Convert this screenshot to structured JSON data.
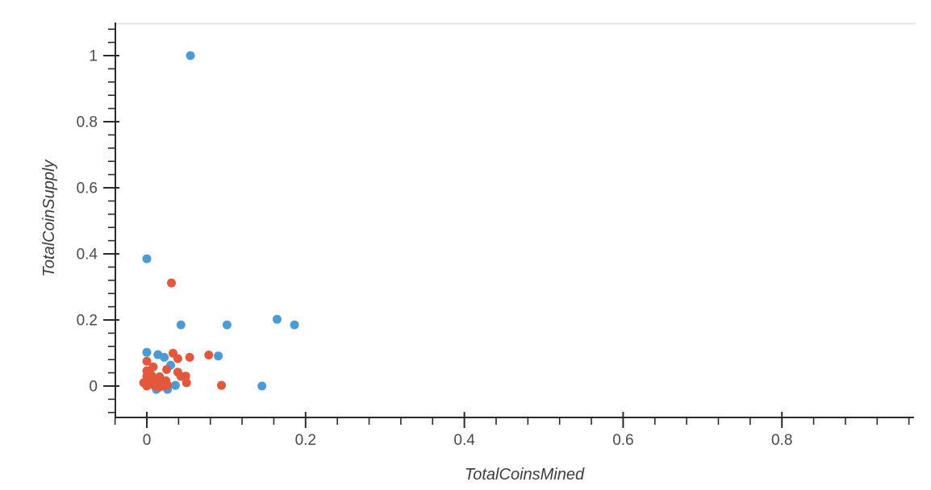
{
  "chart_data": {
    "type": "scatter",
    "title": "",
    "xlabel": "TotalCoinsMined",
    "ylabel": "TotalCoinSupply",
    "xlim": [
      -0.04,
      0.966
    ],
    "ylim": [
      -0.095,
      1.1
    ],
    "grid": "off",
    "legend": "none",
    "top_boundary_line": true,
    "x_ticks": {
      "major_values": [
        0,
        0.2,
        0.4,
        0.6,
        0.8
      ],
      "major_labels": [
        "0",
        "0.2",
        "0.4",
        "0.6",
        "0.8"
      ],
      "minor_step": 0.04,
      "minor_start": -0.04,
      "minor_end": 0.96
    },
    "y_ticks": {
      "major_values": [
        0,
        0.2,
        0.4,
        0.6,
        0.8,
        1
      ],
      "major_labels": [
        "0",
        "0.2",
        "0.4",
        "0.6",
        "0.8",
        "1"
      ],
      "minor_step": 0.04,
      "minor_start": -0.08,
      "minor_end": 1.08
    },
    "series": [
      {
        "name": "blue",
        "color": "#4C9BD5",
        "points": [
          [
            0.055,
            1.0
          ],
          [
            0.0,
            0.385
          ],
          [
            0.043,
            0.185
          ],
          [
            0.101,
            0.185
          ],
          [
            0.164,
            0.202
          ],
          [
            0.186,
            0.185
          ],
          [
            0.145,
            0.0
          ],
          [
            0.09,
            0.091
          ],
          [
            0.0,
            0.102
          ],
          [
            0.014,
            0.095
          ],
          [
            0.022,
            0.087
          ],
          [
            0.03,
            0.063
          ],
          [
            0.036,
            0.002
          ],
          [
            0.012,
            -0.01
          ],
          [
            0.026,
            -0.01
          ]
        ]
      },
      {
        "name": "red",
        "color": "#E3573C",
        "points": [
          [
            0.031,
            0.312
          ],
          [
            0.094,
            0.002
          ],
          [
            0.078,
            0.094
          ],
          [
            0.054,
            0.087
          ],
          [
            0.033,
            0.099
          ],
          [
            0.039,
            0.083
          ],
          [
            0.0,
            0.075
          ],
          [
            0.008,
            0.058
          ],
          [
            0.025,
            0.05
          ],
          [
            0.039,
            0.042
          ],
          [
            0.049,
            0.03
          ],
          [
            0.05,
            0.01
          ],
          [
            0.043,
            0.029
          ],
          [
            0.0,
            0.046
          ],
          [
            0.0,
            0.03
          ],
          [
            -0.004,
            0.01
          ],
          [
            0.0,
            0.0
          ],
          [
            0.004,
            0.018
          ],
          [
            0.006,
            0.032
          ],
          [
            0.008,
            0.004
          ],
          [
            0.012,
            0.017
          ],
          [
            0.012,
            0.0
          ],
          [
            0.016,
            0.028
          ],
          [
            0.018,
            0.008
          ],
          [
            0.02,
            0.0
          ],
          [
            0.024,
            0.016
          ],
          [
            0.026,
            0.003
          ],
          [
            0.016,
            -0.003
          ]
        ]
      }
    ],
    "colors": {
      "axis_line": "#2b2b2b",
      "tick_label": "#4a4a4a",
      "axis_title": "#3d3d3d",
      "top_line": "#e4e4e4",
      "background": "#ffffff"
    }
  }
}
